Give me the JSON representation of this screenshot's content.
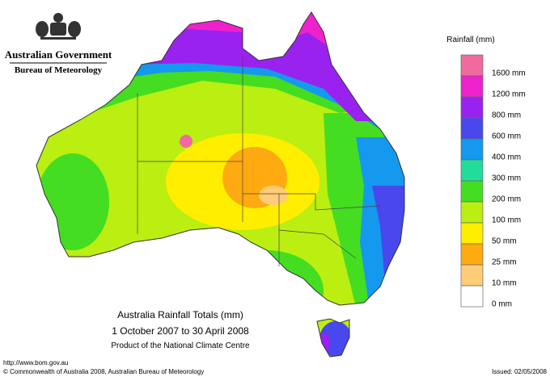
{
  "header": {
    "agency": "Australian Government",
    "bureau": "Bureau of Meteorology"
  },
  "map": {
    "title": "Australia Rainfall Totals (mm)",
    "period": "1 October 2007 to 30 April 2008",
    "product": "Product of the National Climate Centre"
  },
  "legend": {
    "title": "Rainfall (mm)",
    "colors": [
      "#f06aa0",
      "#ee22cc",
      "#9a22ee",
      "#4848ee",
      "#1499ee",
      "#22dd99",
      "#44dd22",
      "#bbee11",
      "#ffee00",
      "#ffaa11",
      "#ffcc77",
      "#ffffff"
    ],
    "labels": [
      "1600 mm",
      "1200 mm",
      "800 mm",
      "600 mm",
      "400 mm",
      "300 mm",
      "200 mm",
      "100 mm",
      "50 mm",
      "25 mm",
      "10 mm",
      "0 mm"
    ]
  },
  "footer": {
    "url": "http://www.bom.gov.au",
    "copyright": "© Commonwealth of Australia 2008, Australian Bureau of Meteorology",
    "issued": "Issued: 02/05/2008"
  }
}
